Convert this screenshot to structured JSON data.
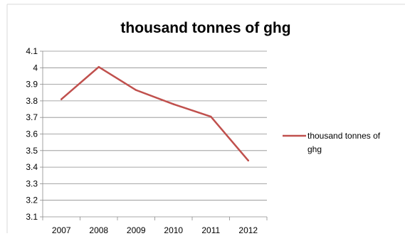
{
  "chart_data": {
    "type": "line",
    "title": "thousand tonnes of ghg",
    "xlabel": "",
    "ylabel": "",
    "categories": [
      "2007",
      "2008",
      "2009",
      "2010",
      "2011",
      "2012"
    ],
    "series": [
      {
        "name": "thousand tonnes of ghg",
        "values": [
          3.81,
          4.005,
          3.865,
          3.78,
          3.705,
          3.44
        ],
        "color": "#c0504d"
      }
    ],
    "ylim": [
      3.1,
      4.1
    ],
    "yticks": [
      "3.1",
      "3.2",
      "3.3",
      "3.4",
      "3.5",
      "3.6",
      "3.7",
      "3.8",
      "3.9",
      "4",
      "4.1"
    ],
    "grid": true,
    "legend": "right"
  }
}
